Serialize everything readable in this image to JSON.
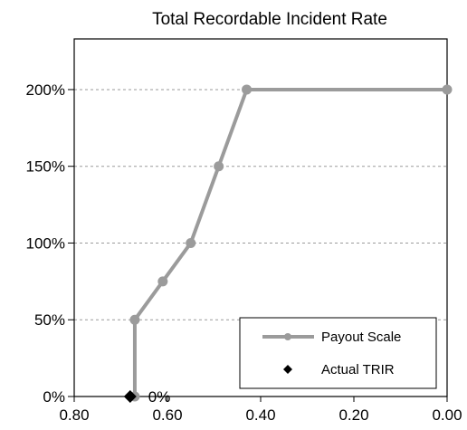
{
  "chart_data": {
    "type": "line",
    "title": "Total Recordable Incident Rate",
    "xlabel": "",
    "ylabel": "",
    "xlim": [
      0.8,
      0.0
    ],
    "ylim": [
      0,
      233
    ],
    "x_reversed": true,
    "x_ticks": [
      "0.80",
      "0.60",
      "0.40",
      "0.20",
      "0.00"
    ],
    "y_ticks": [
      "0%",
      "50%",
      "100%",
      "150%",
      "200%"
    ],
    "grid": "horizontal dashed",
    "legend_position": "bottom-right",
    "series": [
      {
        "name": "Payout Scale",
        "color": "#9b9b9b",
        "marker": "circle",
        "x": [
          0.67,
          0.67,
          0.61,
          0.55,
          0.49,
          0.43,
          0.0
        ],
        "y": [
          0,
          50,
          75,
          100,
          150,
          200,
          200
        ]
      },
      {
        "name": "Actual TRIR",
        "color": "#000000",
        "marker": "diamond",
        "x": [
          0.68
        ],
        "y": [
          0
        ]
      }
    ],
    "annotations": [
      {
        "text": "0%",
        "x": 0.68,
        "y": 0
      }
    ]
  }
}
